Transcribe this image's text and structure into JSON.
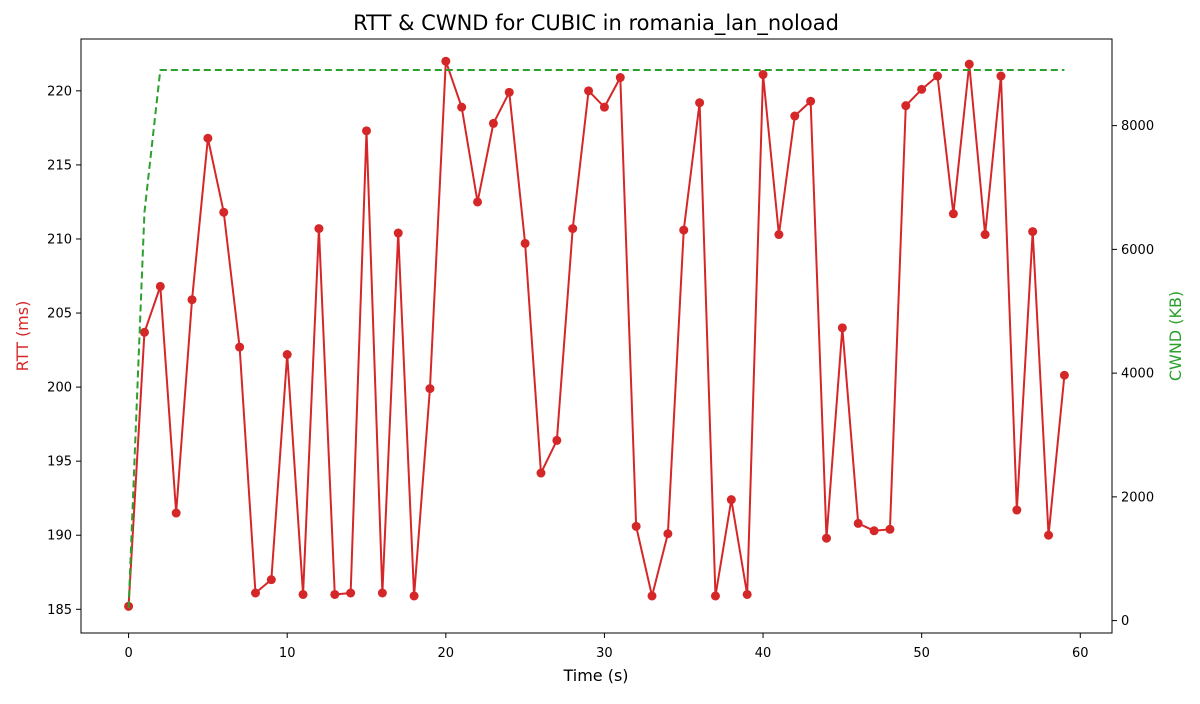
{
  "chart_data": {
    "type": "line",
    "title": "RTT & CWND for CUBIC in romania_lan_noload",
    "xlabel": "Time (s)",
    "ylabel_left": "RTT (ms)",
    "ylabel_right": "CWND (KB)",
    "xlim": [
      -3,
      62
    ],
    "ylim_left": [
      183.4,
      223.5
    ],
    "ylim_right": [
      -200,
      9400
    ],
    "x_ticks": [
      0,
      10,
      20,
      30,
      40,
      50,
      60
    ],
    "y_ticks_left": [
      185,
      190,
      195,
      200,
      205,
      210,
      215,
      220
    ],
    "y_ticks_right": [
      0,
      2000,
      4000,
      6000,
      8000
    ],
    "grid": false,
    "colors": {
      "rtt": "#d62728",
      "cwnd": "#2ca02c"
    },
    "series": [
      {
        "axis": "left",
        "style": "solid-markers",
        "x": [
          0,
          1,
          2,
          3,
          4,
          5,
          6,
          7,
          8,
          9,
          10,
          11,
          12,
          13,
          14,
          15,
          16,
          17,
          18,
          19,
          20,
          21,
          22,
          23,
          24,
          25,
          26,
          27,
          28,
          29,
          30,
          31,
          32,
          33,
          34,
          35,
          36,
          37,
          38,
          39,
          40,
          41,
          42,
          43,
          44,
          45,
          46,
          47,
          48,
          49,
          50,
          51,
          52,
          53,
          54,
          55,
          56,
          57,
          58,
          59
        ],
        "values": [
          185.2,
          203.7,
          206.8,
          191.5,
          205.9,
          216.8,
          211.8,
          202.7,
          186.1,
          187.0,
          202.2,
          186.0,
          210.7,
          186.0,
          186.1,
          217.3,
          186.1,
          210.4,
          185.9,
          199.9,
          222.0,
          218.9,
          212.5,
          217.8,
          219.9,
          209.7,
          194.2,
          196.4,
          210.7,
          220.0,
          218.9,
          220.9,
          190.6,
          185.9,
          190.1,
          210.6,
          219.2,
          185.9,
          192.4,
          186.0,
          221.1,
          210.3,
          218.3,
          219.3,
          189.8,
          204.0,
          190.8,
          190.3,
          190.4,
          219.0,
          220.1,
          221.0,
          211.7,
          221.8,
          210.3,
          221.0,
          191.7,
          210.5,
          190.0,
          200.8
        ]
      },
      {
        "axis": "right",
        "style": "dashed",
        "x": [
          0,
          1,
          2,
          3,
          59
        ],
        "values": [
          200,
          6600,
          8900,
          8900,
          8900
        ]
      }
    ]
  }
}
